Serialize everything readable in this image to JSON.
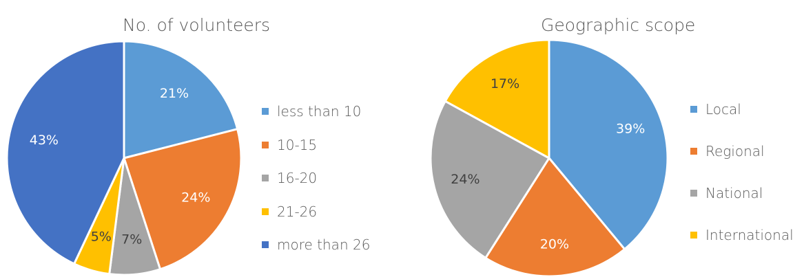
{
  "chart_data": [
    {
      "type": "pie",
      "title": "No. of volunteers",
      "categories": [
        "less than 10",
        "10-15",
        "16-20",
        "21-26",
        "more than 26"
      ],
      "values": [
        21,
        24,
        7,
        5,
        43
      ],
      "value_labels": [
        "21%",
        "24%",
        "7%",
        "5%",
        "43%"
      ],
      "colors": [
        "#5B9BD5",
        "#ED7D31",
        "#A5A5A5",
        "#FFC000",
        "#4472C4"
      ],
      "label_colors": [
        "#ffffff",
        "#ffffff",
        "#404040",
        "#404040",
        "#ffffff"
      ],
      "legend_position": "right"
    },
    {
      "type": "pie",
      "title": "Geographic scope",
      "categories": [
        "Local",
        "Regional",
        "National",
        "International"
      ],
      "values": [
        39,
        20,
        24,
        17
      ],
      "value_labels": [
        "39%",
        "20%",
        "24%",
        "17%"
      ],
      "colors": [
        "#5B9BD5",
        "#ED7D31",
        "#A5A5A5",
        "#FFC000"
      ],
      "label_colors": [
        "#ffffff",
        "#ffffff",
        "#404040",
        "#404040"
      ],
      "legend_position": "right"
    }
  ]
}
